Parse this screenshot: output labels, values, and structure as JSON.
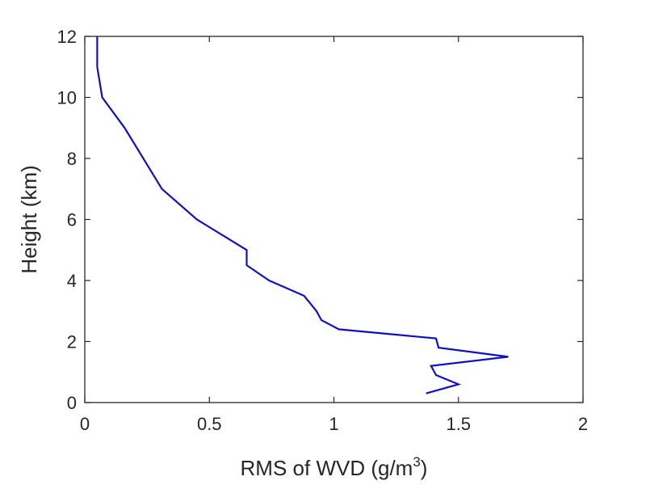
{
  "chart_data": {
    "type": "line",
    "title": "",
    "xlabel": "RMS of WVD (g/m",
    "xlabel_superscript": "3",
    "xlabel_suffix": ")",
    "ylabel": "Height (km)",
    "xlim": [
      0,
      2
    ],
    "ylim": [
      0,
      12
    ],
    "xticks": [
      0,
      0.5,
      1,
      1.5,
      2
    ],
    "xtick_labels": [
      "0",
      "0.5",
      "1",
      "1.5",
      "2"
    ],
    "yticks": [
      0,
      2,
      4,
      6,
      8,
      10,
      12
    ],
    "ytick_labels": [
      "0",
      "2",
      "4",
      "6",
      "8",
      "10",
      "12"
    ],
    "grid": false,
    "box": true,
    "series": [
      {
        "color": "#1010c0",
        "x": [
          1.37,
          1.5,
          1.41,
          1.39,
          1.7,
          1.42,
          1.41,
          1.02,
          0.95,
          0.93,
          0.88,
          0.74,
          0.65,
          0.65,
          0.45,
          0.31,
          0.16,
          0.07,
          0.05,
          0.05,
          0.05
        ],
        "y": [
          0.3,
          0.6,
          0.9,
          1.2,
          1.5,
          1.8,
          2.1,
          2.4,
          2.7,
          3.0,
          3.5,
          4.0,
          4.5,
          5.0,
          6.0,
          7.0,
          9.0,
          10.0,
          11.0,
          11.5,
          12.0
        ]
      }
    ]
  }
}
